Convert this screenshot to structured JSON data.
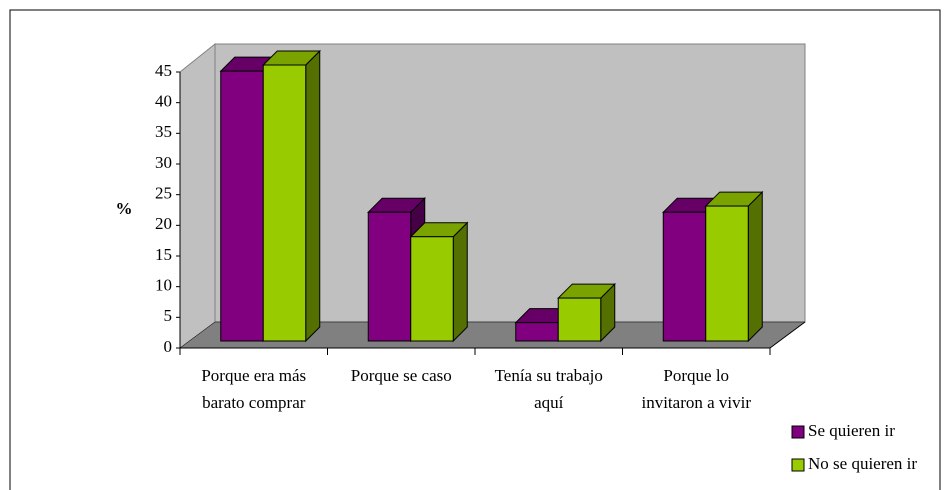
{
  "chart_data": {
    "type": "bar3d",
    "ylabel": "%",
    "categories": [
      [
        "Porque era más",
        "barato comprar"
      ],
      [
        "Porque se caso"
      ],
      [
        "Tenía su trabajo",
        "aquí"
      ],
      [
        "Porque lo",
        "invitaron a vivir"
      ]
    ],
    "series": [
      {
        "name": "Se quieren ir",
        "color": "#800080",
        "values": [
          44,
          21,
          3,
          21
        ]
      },
      {
        "name": "No se quieren ir",
        "color": "#99cc00",
        "values": [
          45,
          17,
          7,
          22
        ]
      }
    ],
    "ylim": [
      0,
      45
    ],
    "yticks": [
      0,
      5,
      10,
      15,
      20,
      25,
      30,
      35,
      40,
      45
    ]
  }
}
